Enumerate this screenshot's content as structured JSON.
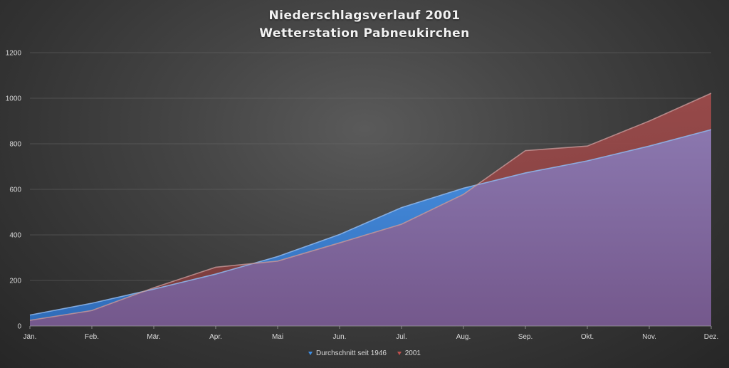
{
  "chart_data": {
    "type": "area",
    "title": "Niederschlagsverlauf 2001",
    "subtitle": "Wetterstation Pabneukirchen",
    "xlabel": "",
    "ylabel": "",
    "categories": [
      "Jän.",
      "Feb.",
      "Mär.",
      "Apr.",
      "Mai",
      "Jun.",
      "Jul.",
      "Aug.",
      "Sep.",
      "Okt.",
      "Nov.",
      "Dez."
    ],
    "ylim": [
      0,
      1200
    ],
    "yticks": [
      0,
      200,
      400,
      600,
      800,
      1000,
      1200
    ],
    "grid": true,
    "legend_position": "bottom",
    "series": [
      {
        "name": "Durchschnitt seit 1946",
        "color": "#3d8fe6",
        "values": [
          48,
          100,
          162,
          228,
          305,
          402,
          520,
          605,
          672,
          725,
          790,
          862
        ]
      },
      {
        "name": "2001",
        "color": "#c0504d",
        "values": [
          25,
          68,
          168,
          258,
          285,
          365,
          447,
          578,
          770,
          790,
          900,
          1022
        ]
      }
    ]
  }
}
